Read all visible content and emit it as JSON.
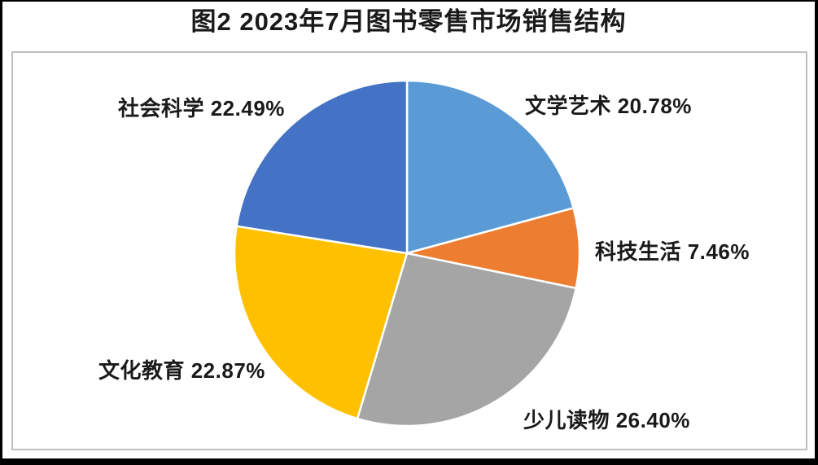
{
  "window": {
    "background": "#ffffff",
    "frame_color": "#000000",
    "plot_border_color": "#BFBFBF"
  },
  "chart_data": {
    "type": "pie",
    "title": "图2 2023年7月图书零售市场销售结构",
    "legend": "none",
    "grid": "off",
    "unit": "%",
    "start_angle_deg": 0,
    "direction": "clockwise",
    "label_style": "category-name space percent, black text outside slices",
    "slices": [
      {
        "id": "literature-art",
        "label": "文学艺术",
        "value": 20.78,
        "display": "文学艺术 20.78%",
        "color": "#5B9BD5",
        "label_position": "upper-right"
      },
      {
        "id": "tech-life",
        "label": "科技生活",
        "value": 7.46,
        "display": "科技生活 7.46%",
        "color": "#ED7D31",
        "label_position": "right"
      },
      {
        "id": "children-books",
        "label": "少儿读物",
        "value": 26.4,
        "display": "少儿读物 26.40%",
        "color": "#A5A5A5",
        "label_position": "lower-right"
      },
      {
        "id": "culture-education",
        "label": "文化教育",
        "value": 22.87,
        "display": "文化教育 22.87%",
        "color": "#FFC000",
        "label_position": "lower-left"
      },
      {
        "id": "social-science",
        "label": "社会科学",
        "value": 22.49,
        "display": "社会科学 22.49%",
        "color": "#4472C4",
        "label_position": "upper-left"
      }
    ]
  }
}
